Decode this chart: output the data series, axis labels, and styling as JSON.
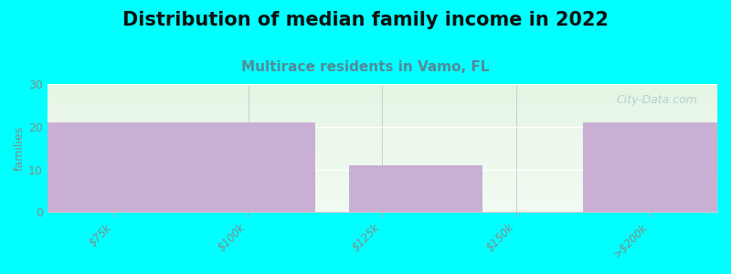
{
  "title": "Distribution of median family income in 2022",
  "subtitle": "Multirace residents in Vamo, FL",
  "categories": [
    "$75k",
    "$100k",
    "$125k",
    "$150k",
    ">$200k"
  ],
  "values": [
    21,
    0,
    11,
    0,
    21
  ],
  "bar_color": "#c9afd4",
  "background_color": "#00ffff",
  "plot_bg_top": "#f0faf0",
  "plot_bg_bottom": "#ffffff",
  "ylabel": "families",
  "ylim": [
    0,
    30
  ],
  "yticks": [
    0,
    10,
    20,
    30
  ],
  "title_fontsize": 15,
  "subtitle_fontsize": 11,
  "subtitle_color": "#558899",
  "tick_label_color": "#888888",
  "watermark": "City-Data.com",
  "watermark_color": "#aacccc",
  "bin_edges": [
    0,
    2,
    3,
    4,
    5,
    7
  ],
  "bar_heights": [
    21,
    0,
    11,
    0,
    21
  ]
}
